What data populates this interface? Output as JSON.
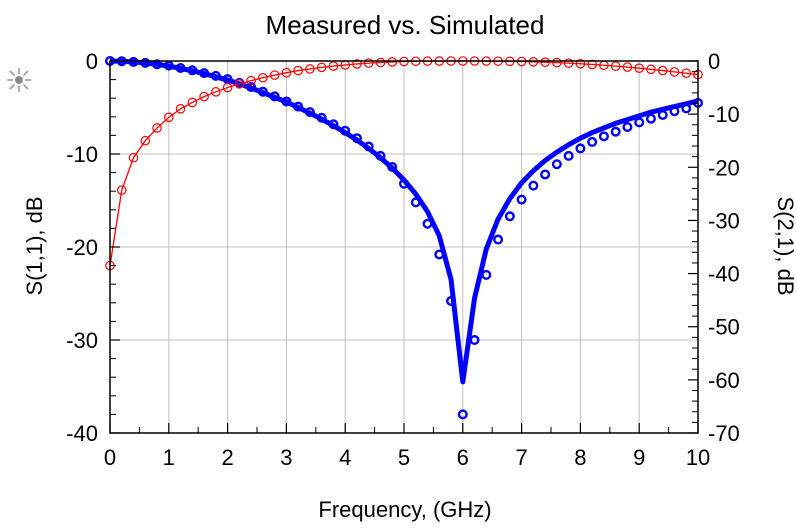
{
  "chart_data": {
    "type": "line",
    "title": "Measured vs. Simulated",
    "xlabel": "Frequency, (GHz)",
    "ylabel_left": "S(1,1), dB",
    "ylabel_right": "S(2,1), dB",
    "xlim": [
      0,
      10
    ],
    "ylim_left": [
      -40,
      0
    ],
    "ylim_right": [
      -70,
      0
    ],
    "x_ticks": [
      "0",
      "1",
      "2",
      "3",
      "4",
      "5",
      "6",
      "7",
      "8",
      "9",
      "10"
    ],
    "y_left_ticks": [
      "0",
      "-10",
      "-20",
      "-30",
      "-40"
    ],
    "y_right_ticks": [
      "0",
      "-10",
      "-20",
      "-30",
      "-40",
      "-50",
      "-60",
      "-70"
    ],
    "grid": true,
    "colors": {
      "s11": "#0000ff",
      "s21": "#ff0000",
      "grid": "#c0c0c0"
    },
    "icon": "marker-crosshair-icon",
    "series": [
      {
        "axis": "left",
        "style": "thick-line",
        "color": "#0000ff",
        "x": [
          0,
          0.2,
          0.4,
          0.6,
          0.8,
          1.0,
          1.2,
          1.4,
          1.6,
          1.8,
          2.0,
          2.2,
          2.4,
          2.6,
          2.8,
          3.0,
          3.2,
          3.4,
          3.6,
          3.8,
          4.0,
          4.2,
          4.4,
          4.6,
          4.8,
          5.0,
          5.2,
          5.4,
          5.6,
          5.8,
          6.0,
          6.2,
          6.4,
          6.6,
          6.8,
          7.0,
          7.2,
          7.4,
          7.6,
          7.8,
          8.0,
          8.2,
          8.4,
          8.6,
          8.8,
          9.0,
          9.2,
          9.4,
          9.6,
          9.8,
          10.0
        ],
        "y": [
          0,
          -0.03,
          -0.1,
          -0.2,
          -0.35,
          -0.55,
          -0.8,
          -1.05,
          -1.35,
          -1.7,
          -2.05,
          -2.45,
          -2.9,
          -3.4,
          -3.9,
          -4.4,
          -5.0,
          -5.6,
          -6.25,
          -6.95,
          -7.7,
          -8.5,
          -9.4,
          -10.4,
          -11.5,
          -12.8,
          -14.3,
          -16.2,
          -18.8,
          -23.5,
          -34.5,
          -25.5,
          -20.2,
          -17.0,
          -14.8,
          -13.1,
          -11.8,
          -10.7,
          -9.8,
          -9.0,
          -8.3,
          -7.7,
          -7.2,
          -6.7,
          -6.3,
          -5.9,
          -5.5,
          -5.2,
          -4.9,
          -4.6,
          -4.3
        ]
      },
      {
        "axis": "left",
        "style": "markers",
        "color": "#0000ff",
        "x": [
          0,
          0.2,
          0.4,
          0.6,
          0.8,
          1.0,
          1.2,
          1.4,
          1.6,
          1.8,
          2.0,
          2.2,
          2.4,
          2.6,
          2.8,
          3.0,
          3.2,
          3.4,
          3.6,
          3.8,
          4.0,
          4.2,
          4.4,
          4.6,
          4.8,
          5.0,
          5.2,
          5.4,
          5.6,
          5.8,
          6.0,
          6.2,
          6.4,
          6.6,
          6.8,
          7.0,
          7.2,
          7.4,
          7.6,
          7.8,
          8.0,
          8.2,
          8.4,
          8.6,
          8.8,
          9.0,
          9.2,
          9.4,
          9.6,
          9.8,
          10.0
        ],
        "y": [
          0,
          -0.03,
          -0.1,
          -0.2,
          -0.35,
          -0.5,
          -0.75,
          -1.0,
          -1.3,
          -1.6,
          -1.95,
          -2.35,
          -2.8,
          -3.3,
          -3.8,
          -4.35,
          -4.9,
          -5.5,
          -6.1,
          -6.8,
          -7.5,
          -8.3,
          -9.2,
          -10.2,
          -11.4,
          -13.2,
          -15.2,
          -17.5,
          -20.8,
          -25.8,
          -38.0,
          -30.0,
          -23.0,
          -19.2,
          -16.7,
          -14.9,
          -13.4,
          -12.2,
          -11.1,
          -10.2,
          -9.4,
          -8.7,
          -8.1,
          -7.6,
          -7.1,
          -6.6,
          -6.2,
          -5.8,
          -5.4,
          -5.1,
          -4.5
        ]
      },
      {
        "axis": "right",
        "style": "thin-line-markers",
        "color": "#ff0000",
        "x": [
          0,
          0.2,
          0.4,
          0.6,
          0.8,
          1.0,
          1.2,
          1.4,
          1.6,
          1.8,
          2.0,
          2.2,
          2.4,
          2.6,
          2.8,
          3.0,
          3.2,
          3.4,
          3.6,
          3.8,
          4.0,
          4.2,
          4.4,
          4.6,
          4.8,
          5.0,
          5.2,
          5.4,
          5.6,
          5.8,
          6.0,
          6.2,
          6.4,
          6.6,
          6.8,
          7.0,
          7.2,
          7.4,
          7.6,
          7.8,
          8.0,
          8.2,
          8.4,
          8.6,
          8.8,
          9.0,
          9.2,
          9.4,
          9.6,
          9.8,
          10.0
        ],
        "y": [
          -38.5,
          -24.3,
          -18.2,
          -15.0,
          -12.6,
          -10.6,
          -9.0,
          -7.8,
          -6.7,
          -5.8,
          -5.0,
          -4.3,
          -3.7,
          -3.15,
          -2.65,
          -2.2,
          -1.8,
          -1.5,
          -1.2,
          -0.95,
          -0.75,
          -0.55,
          -0.4,
          -0.28,
          -0.18,
          -0.1,
          -0.05,
          -0.02,
          -0.01,
          0,
          0,
          0,
          -0.01,
          -0.03,
          -0.06,
          -0.1,
          -0.15,
          -0.22,
          -0.3,
          -0.4,
          -0.52,
          -0.65,
          -0.8,
          -0.97,
          -1.15,
          -1.35,
          -1.57,
          -1.8,
          -2.05,
          -2.3,
          -2.55
        ]
      }
    ]
  }
}
